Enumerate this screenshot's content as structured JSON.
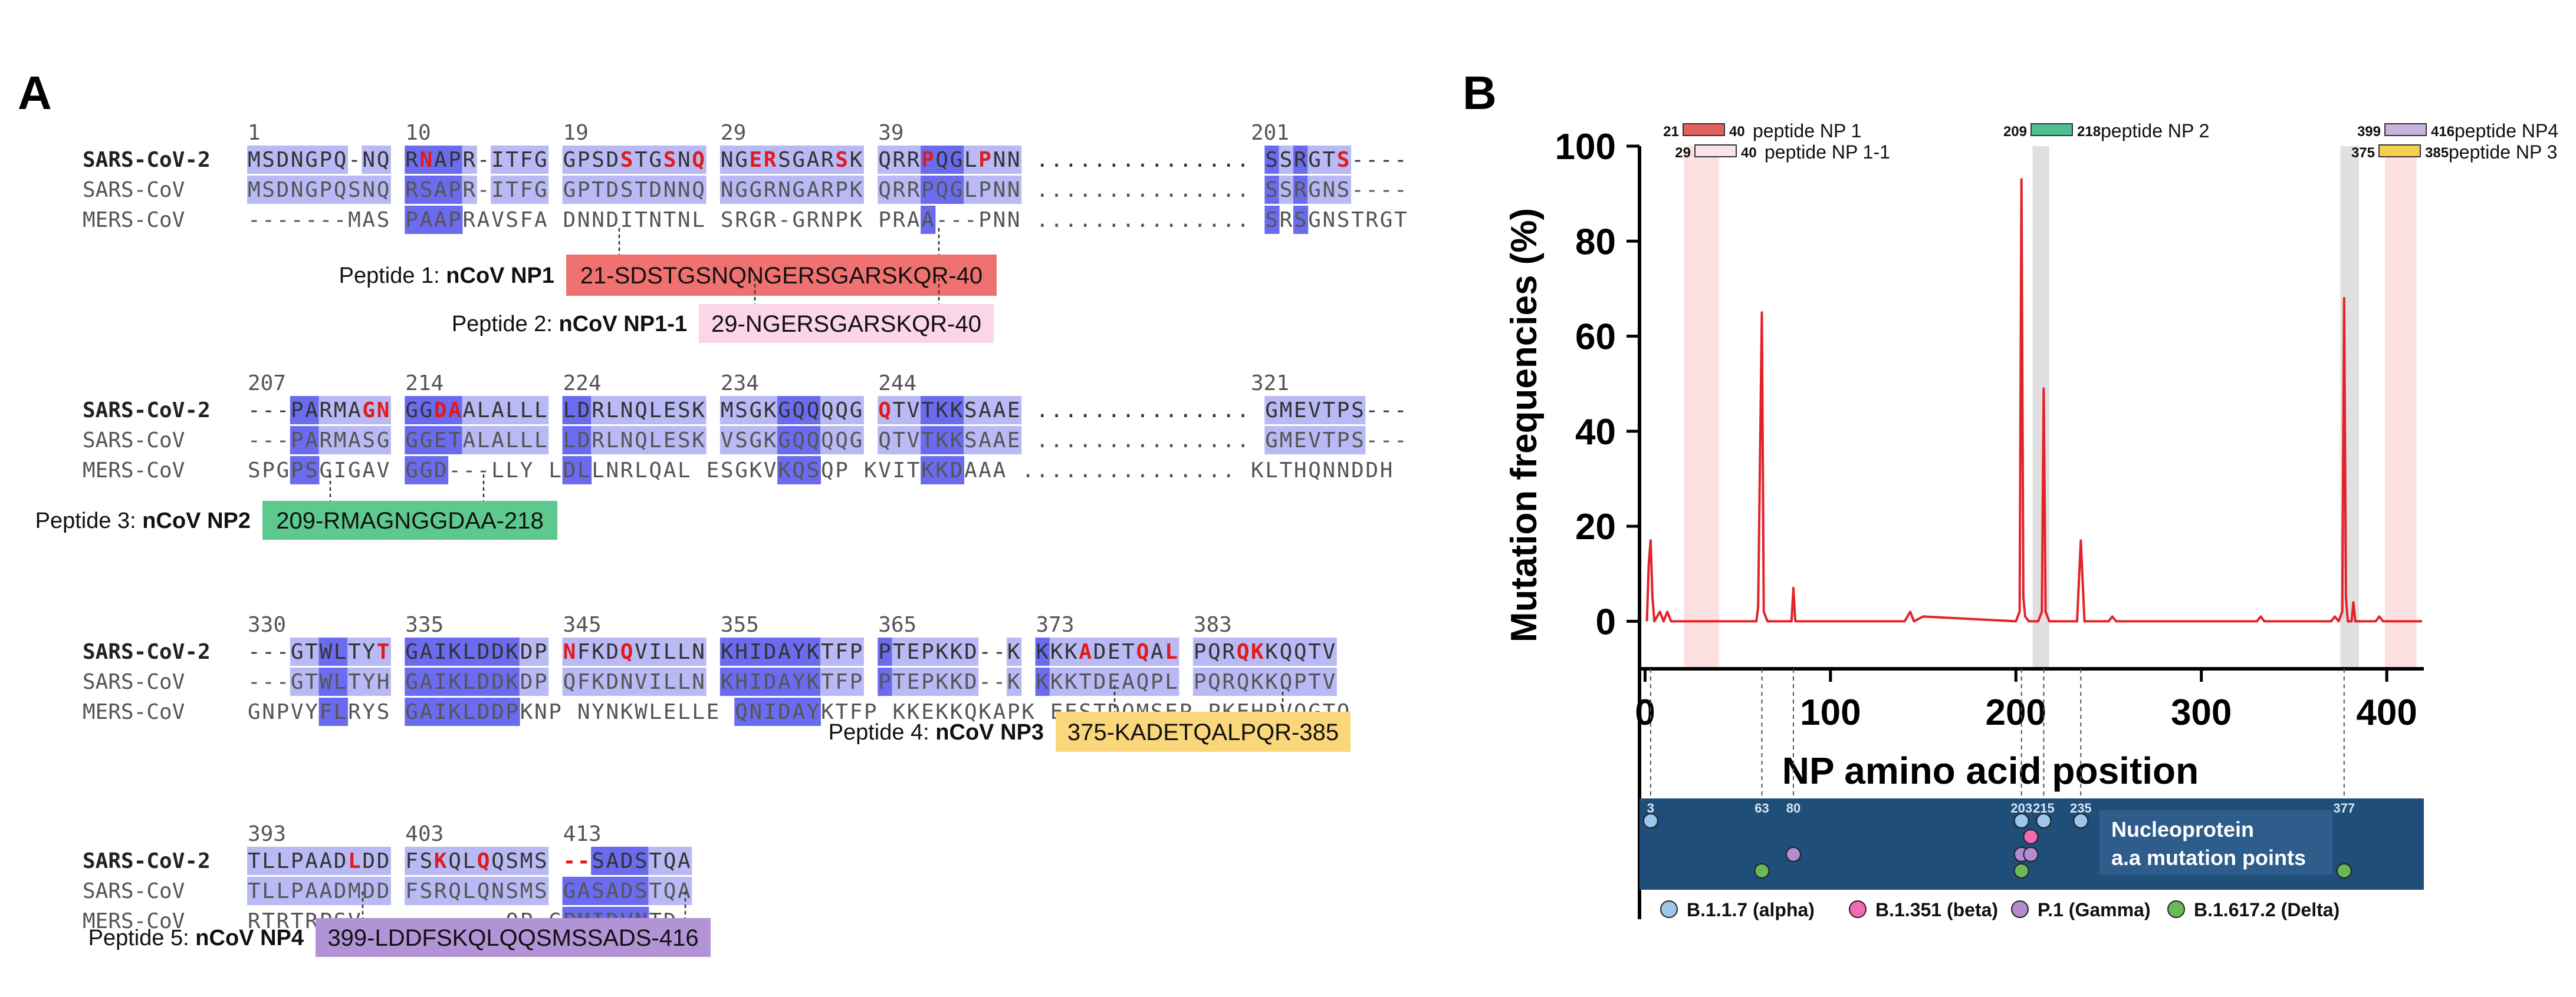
{
  "panel_a": {
    "label": "A",
    "blocks": [
      {
        "numbers": [
          "1",
          "10",
          "19",
          "29",
          "39",
          "201"
        ],
        "rows": [
          {
            "name": "SARS-CoV-2",
            "text": "MSDNGPQ-NQ RNAPR-ITFG GPSDSTGSNQ NGERSGARSK QRRPQGLPNN ............... SSRGTS----"
          },
          {
            "name": "SARS-CoV",
            "text": "MSDNGPQSNQ RSAPR-ITFG GPTDSTDNNQ NGGRNGARPK QRRPQGLPNN ............... SSRGNS----"
          },
          {
            "name": "MERS-CoV",
            "text": "-------MAS PAAPRAVSFA DNNDITNTNL SRGR-GRNPK PRAA---PNN ............... SRSGNSTRGT"
          }
        ],
        "peptides": [
          {
            "prefix": "Peptide 1: ",
            "name": "nCoV NP1",
            "seq": "21-SDSTGSNQNGERSGARSKQR-40",
            "color": "#f07270"
          },
          {
            "prefix": "Peptide 2: ",
            "name": "nCoV NP1-1",
            "seq": "29-NGERSGARSKQR-40",
            "color": "#fbd5e8"
          }
        ]
      },
      {
        "numbers": [
          "207",
          "214",
          "224",
          "234",
          "244",
          "321"
        ],
        "rows": [
          {
            "name": "SARS-CoV-2",
            "text": "---PARMAGN GGDAALALLL LDRLNQLESK MSGKGQQQQG QTVTKKSAAE ............... GMEVTPS---"
          },
          {
            "name": "SARS-CoV",
            "text": "---PARMASG GGETALALLL LDRLNQLESK VSGKGQQQQG QTVTKKSAAE ............... GMEVTPS---"
          },
          {
            "name": "MERS-CoV",
            "text": "SPGPSGIGAV GGD---LLY LDLLNRLQAL ESGKVKQSQP KVITKKDAAA ............... KLTHQNNDDH"
          }
        ],
        "peptides": [
          {
            "prefix": "Peptide 3: ",
            "name": "nCoV NP2",
            "seq": "209-RMAGNGGDAA-218",
            "color": "#5ec98f"
          }
        ]
      },
      {
        "numbers": [
          "330",
          "335",
          "345",
          "355",
          "365",
          "373",
          "383"
        ],
        "rows": [
          {
            "name": "SARS-CoV-2",
            "text": "---GTWLTYT GAIKLDDKDP NFKDQVILLN KHIDAYKTFP PTEPKKD--K KKKADETQAL PQRQKKQQTV"
          },
          {
            "name": "SARS-CoV",
            "text": "---GTWLTYH GAIKLDDKDP QFKDNVILLN KHIDAYKTFP PTEPKKD--K KKKTDEAQPL PQRQKKQPTV"
          },
          {
            "name": "MERS-CoV",
            "text": "GNPVYFLRYS GAIKLDDPKNP NYNKWLELLE QNIDAYKTFP KKEKKQKAPK EESTDQMSEP PKEHRVQGTQ"
          }
        ],
        "peptides": [
          {
            "prefix": "Peptide 4: ",
            "name": "nCoV NP3",
            "seq": "375-KADETQALPQR-385",
            "color": "#fad77a"
          }
        ]
      },
      {
        "numbers": [
          "393",
          "403",
          "413"
        ],
        "rows": [
          {
            "name": "SARS-CoV-2",
            "text": "TLLPAADLDD FSKQLQQSMS --SADSTQA"
          },
          {
            "name": "SARS-CoV",
            "text": "TLLPAADMDD FSRQLQNSMS GASADSTQA"
          },
          {
            "name": "MERS-CoV",
            "text": "RTRTRPSV-- -------QP GPMIDVNTD"
          }
        ],
        "peptides": [
          {
            "prefix": "Peptide 5: ",
            "name": "nCoV NP4",
            "seq": "399-LDDFSKQLQQSMSSADS-416",
            "color": "#b293d6"
          }
        ]
      }
    ]
  },
  "panel_b": {
    "label": "B",
    "ylabel": "Mutation frequencies (%)",
    "xlabel": "NP amino acid position",
    "box_title": "Nucleoprotein",
    "box_subtitle": "a.a mutation points",
    "peptide_labels": [
      {
        "start": "21",
        "end": "40",
        "name": "peptide NP 1",
        "color": "#e2625f"
      },
      {
        "start": "29",
        "end": "40",
        "name": "peptide NP 1-1",
        "color": "#fbe3ec"
      },
      {
        "start": "209",
        "end": "218",
        "name": "peptide NP 2",
        "color": "#4dc092"
      },
      {
        "start": "399",
        "end": "416",
        "name": "peptide NP4",
        "color": "#c9b4e0"
      },
      {
        "start": "375",
        "end": "385",
        "name": "peptide NP 3",
        "color": "#f5d04f"
      }
    ],
    "mutation_points": [
      "3",
      "63",
      "80",
      "203",
      "215",
      "235",
      "377"
    ],
    "legend": [
      {
        "label": "B.1.1.7 (alpha)",
        "color": "#9cc6ea"
      },
      {
        "label": "B.1.351 (beta)",
        "color": "#f06ab4"
      },
      {
        "label": "P.1 (Gamma)",
        "color": "#b48ad0"
      },
      {
        "label": "B.1.617.2 (Delta)",
        "color": "#6ab85a"
      }
    ],
    "colors": {
      "line": "#e3222a",
      "box": "#1f4e79"
    }
  },
  "chart_data": {
    "type": "line",
    "title": "",
    "xlabel": "NP amino acid position",
    "ylabel": "Mutation frequencies (%)",
    "xlim": [
      -3,
      420
    ],
    "ylim": [
      -10,
      100
    ],
    "xticks": [
      "0",
      "100",
      "200",
      "300",
      "400"
    ],
    "yticks": [
      "0",
      "20",
      "40",
      "60",
      "80",
      "100"
    ],
    "grid": false,
    "series": [
      {
        "x": [
          1,
          2,
          3,
          4,
          5,
          8,
          10,
          12,
          14,
          30,
          60,
          61,
          63,
          64,
          66,
          79,
          80,
          81,
          140,
          143,
          145,
          150,
          200,
          202,
          203,
          204,
          205,
          207,
          212,
          214,
          215,
          216,
          218,
          233,
          235,
          237,
          250,
          252,
          254,
          330,
          332,
          334,
          370,
          372,
          374,
          376,
          377,
          378,
          379,
          381,
          382,
          383,
          385,
          394,
          396,
          398,
          419
        ],
        "y": [
          0,
          12,
          17,
          5,
          0,
          2,
          0,
          2,
          0,
          0,
          0,
          3,
          65,
          2,
          0,
          0,
          7,
          0,
          0,
          2,
          0,
          1,
          0,
          2,
          93,
          5,
          1,
          0,
          0,
          2,
          49,
          2,
          0,
          0,
          17,
          0,
          0,
          1,
          0,
          0,
          1,
          0,
          0,
          1,
          0,
          2,
          68,
          5,
          0,
          0,
          4,
          0,
          0,
          0,
          1,
          0,
          0
        ]
      }
    ],
    "shaded_regions": [
      {
        "from": 21,
        "to": 40,
        "color": "pink"
      },
      {
        "from": 209,
        "to": 218,
        "color": "gray"
      },
      {
        "from": 375,
        "to": 385,
        "color": "gray"
      },
      {
        "from": 399,
        "to": 416,
        "color": "pink"
      }
    ]
  }
}
